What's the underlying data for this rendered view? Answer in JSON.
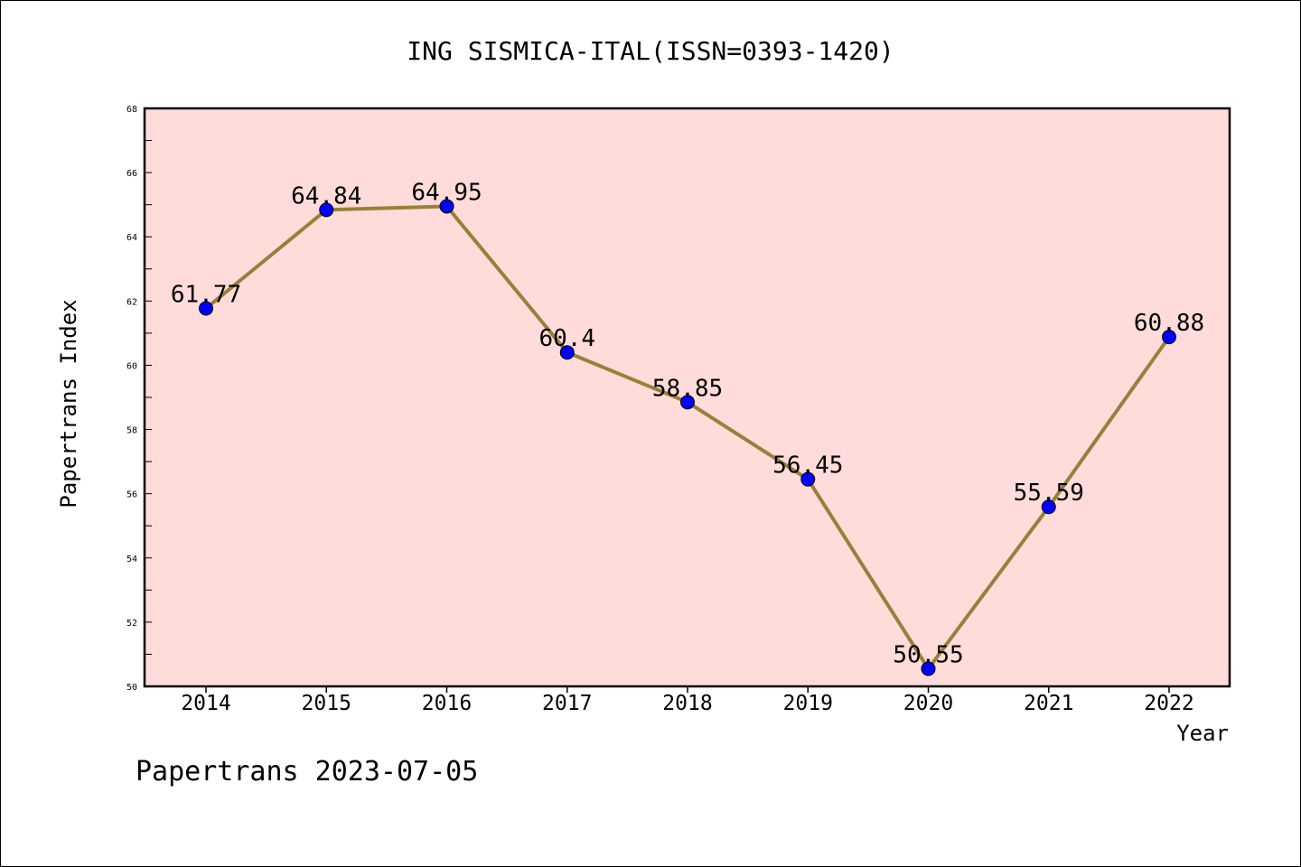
{
  "chart_data": {
    "type": "line",
    "title": "ING SISMICA-ITAL(ISSN=0393-1420)",
    "xlabel": "Year",
    "ylabel": "Papertrans Index",
    "categories": [
      "2014",
      "2015",
      "2016",
      "2017",
      "2018",
      "2019",
      "2020",
      "2021",
      "2022"
    ],
    "values": [
      61.77,
      64.84,
      64.95,
      60.4,
      58.85,
      56.45,
      50.55,
      55.59,
      60.88
    ],
    "data_labels": [
      "61.77",
      "64.84",
      "64.95",
      "60.4",
      "58.85",
      "56.45",
      "50.55",
      "55.59",
      "60.88"
    ],
    "ylim": [
      50,
      68
    ],
    "yticks": [
      "50",
      "52",
      "54",
      "56",
      "58",
      "60",
      "62",
      "64",
      "66",
      "68"
    ],
    "grid": false,
    "colors": {
      "plot_background": "#FFDCDA",
      "line": "#9A7F3A",
      "marker": "#0000FF"
    }
  },
  "footer": "Papertrans 2023-07-05"
}
